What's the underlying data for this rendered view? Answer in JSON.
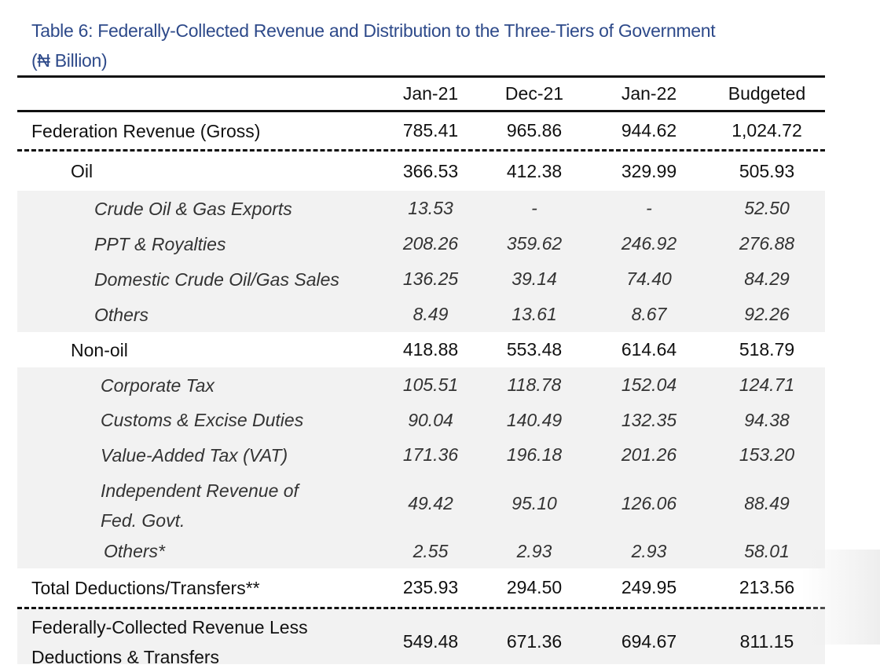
{
  "title_line1": "Table 6: Federally-Collected Revenue and Distribution to the Three-Tiers of Government",
  "title_line2": "(₦ Billion)",
  "columns": [
    "Jan-21",
    "Dec-21",
    "Jan-22",
    "Budgeted"
  ],
  "rows": [
    {
      "label": "Federation Revenue (Gross)",
      "values": [
        "785.41",
        "965.86",
        "944.62",
        "1,024.72"
      ],
      "level": 0
    },
    {
      "label": "Oil",
      "values": [
        "366.53",
        "412.38",
        "329.99",
        "505.93"
      ],
      "level": 1
    },
    {
      "label": "Crude Oil & Gas Exports",
      "values": [
        "13.53",
        "-",
        "-",
        "52.50"
      ],
      "level": 2
    },
    {
      "label": "PPT & Royalties",
      "values": [
        "208.26",
        "359.62",
        "246.92",
        "276.88"
      ],
      "level": 2
    },
    {
      "label": "Domestic Crude Oil/Gas Sales",
      "values": [
        "136.25",
        "39.14",
        "74.40",
        "84.29"
      ],
      "level": 2
    },
    {
      "label": "Others",
      "values": [
        "8.49",
        "13.61",
        "8.67",
        "92.26"
      ],
      "level": 2
    },
    {
      "label": "Non-oil",
      "values": [
        "418.88",
        "553.48",
        "614.64",
        "518.79"
      ],
      "level": 1
    },
    {
      "label": "Corporate Tax",
      "values": [
        "105.51",
        "118.78",
        "152.04",
        "124.71"
      ],
      "level": 3
    },
    {
      "label": "Customs & Excise Duties",
      "values": [
        "90.04",
        "140.49",
        "132.35",
        "94.38"
      ],
      "level": 3
    },
    {
      "label": "Value-Added Tax (VAT)",
      "values": [
        "171.36",
        "196.18",
        "201.26",
        "153.20"
      ],
      "level": 3
    },
    {
      "label": "Independent Revenue of Fed. Govt.",
      "values": [
        "49.42",
        "95.10",
        "126.06",
        "88.49"
      ],
      "level": 3
    },
    {
      "label": "Others*",
      "values": [
        "2.55",
        "2.93",
        "2.93",
        "58.01"
      ],
      "level": 4
    },
    {
      "label": "Total Deductions/Transfers**",
      "values": [
        "235.93",
        "294.50",
        "249.95",
        "213.56"
      ],
      "level": 0
    },
    {
      "label": "Federally-Collected Revenue Less Deductions & Transfers",
      "values": [
        "549.48",
        "671.36",
        "694.67",
        "811.15"
      ],
      "level": 0
    }
  ]
}
